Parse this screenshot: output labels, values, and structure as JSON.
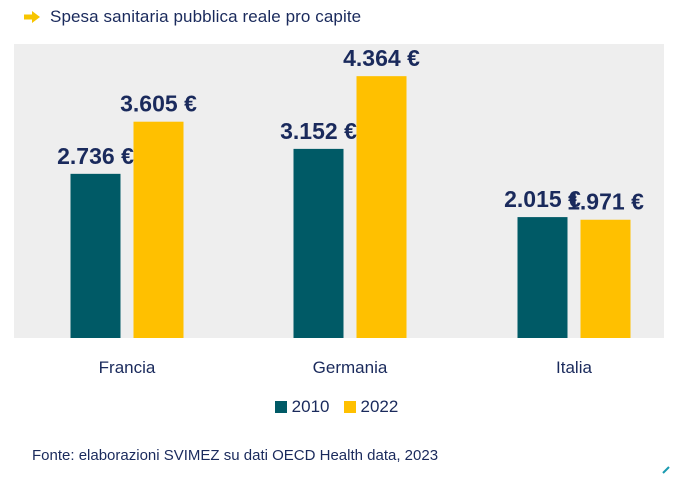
{
  "header": {
    "title": "Spesa sanitaria pubblica reale pro capite",
    "icon": "arrow-right-icon",
    "icon_color": "#f7c500"
  },
  "chart_data": {
    "type": "bar",
    "categories": [
      "Francia",
      "Germania",
      "Italia"
    ],
    "series": [
      {
        "name": "2010",
        "values": [
          2736,
          3152,
          2015
        ],
        "labels": [
          "2.736 €",
          "3.152 €",
          "2.015 €"
        ],
        "color": "#005a66"
      },
      {
        "name": "2022",
        "values": [
          3605,
          4364,
          1971
        ],
        "labels": [
          "3.605 €",
          "4.364 €",
          "1.971 €"
        ],
        "color": "#ffc000"
      }
    ],
    "ylim": [
      0,
      4900
    ],
    "grid": false,
    "legend_position": "bottom",
    "plot_background": "#eeeeee"
  },
  "source": "Fonte: elaborazioni SVIMEZ su dati OECD Health data, 2023"
}
